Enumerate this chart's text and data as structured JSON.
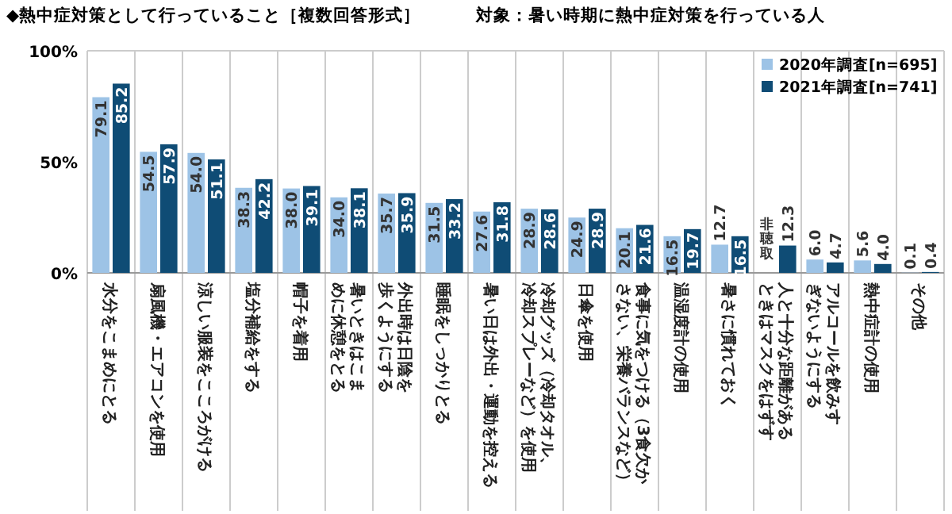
{
  "chart_data": {
    "type": "bar",
    "title": "◆熱中症対策として行っていること［複数回答形式］",
    "subtitle": "対象：暑い時期に熱中症対策を行っている人",
    "categories": [
      "水分をこまめにとる",
      "扇風機・エアコンを使用",
      "涼しい服装をこころがける",
      "塩分補給をする",
      "帽子を着用",
      "暑いときはこまめに休憩をとる",
      "外出時は日陰を歩くようにする",
      "睡眠をしっかりとる",
      "暑い日は外出・運動を控える",
      "冷却グッズ（冷却タオル、冷却スプレーなど）を使用",
      "日傘を使用",
      "食事に気をつける（3食欠かさない、栄養バランスなど）",
      "温湿度計の使用",
      "暑さに慣れておく",
      "人と十分な距離があるときはマスクをはずす",
      "アルコールを飲みすぎないようにする",
      "熱中症計の使用",
      "その他"
    ],
    "series": [
      {
        "name": "2020年調査[n=695]",
        "color": "#9dc3e6",
        "values": [
          79.1,
          54.5,
          54.0,
          38.3,
          38.0,
          34.0,
          35.7,
          31.5,
          27.6,
          28.9,
          24.9,
          20.1,
          16.5,
          12.7,
          null,
          6.0,
          5.6,
          0.1
        ],
        "value_labels": [
          "79.1",
          "54.5",
          "54.0",
          "38.3",
          "38.0",
          "34.0",
          "35.7",
          "31.5",
          "27.6",
          "28.9",
          "24.9",
          "20.1",
          "16.5",
          "12.7",
          "非聴取",
          "6.0",
          "5.6",
          "0.1"
        ]
      },
      {
        "name": "2021年調査[n=741]",
        "color": "#0f4c75",
        "values": [
          85.2,
          57.9,
          51.1,
          42.2,
          39.1,
          38.1,
          35.9,
          33.2,
          31.8,
          28.6,
          28.9,
          21.6,
          19.7,
          16.5,
          12.3,
          4.7,
          4.0,
          0.4
        ],
        "value_labels": [
          "85.2",
          "57.9",
          "51.1",
          "42.2",
          "39.1",
          "38.1",
          "35.9",
          "33.2",
          "31.8",
          "28.6",
          "28.9",
          "21.6",
          "19.7",
          "16.5",
          "12.3",
          "4.7",
          "4.0",
          "0.4"
        ]
      }
    ],
    "ylim": [
      0,
      100
    ],
    "yticks": [
      {
        "value": 0,
        "label": "0%"
      },
      {
        "value": 50,
        "label": "50%"
      },
      {
        "value": 100,
        "label": "100%"
      }
    ],
    "grid": "x",
    "legend": "top right"
  }
}
